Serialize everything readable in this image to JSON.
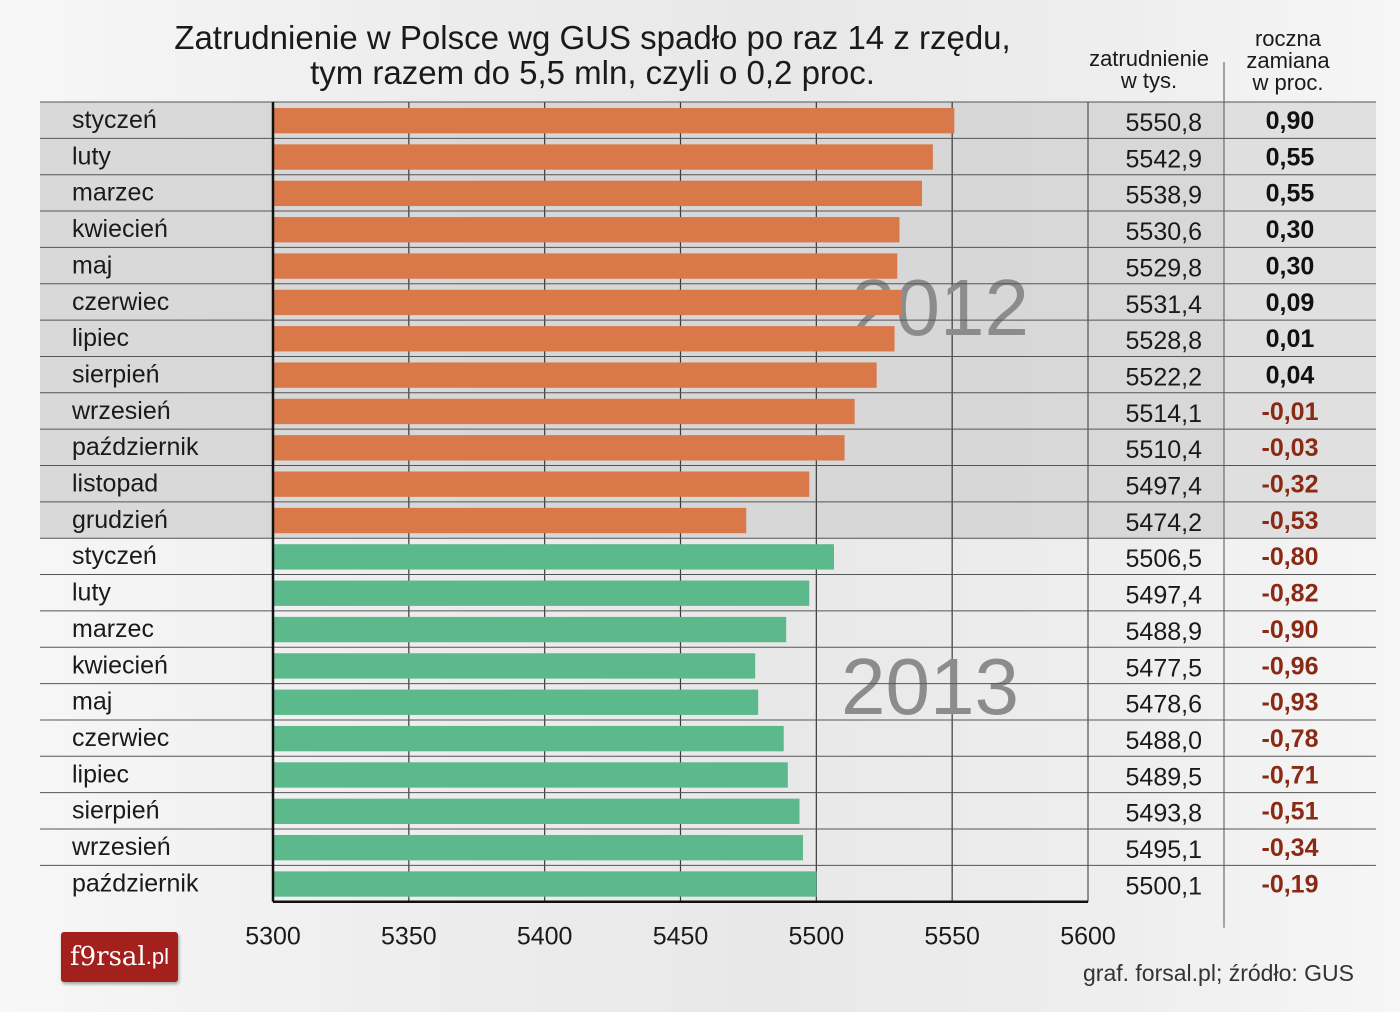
{
  "title_line1": "Zatrudnienie w Polsce wg GUS spadło po raz 14 z rzędu,",
  "title_line2": "tym razem do 5,5 mln, czyli o 0,2 proc.",
  "col_employment": [
    "zatrudnienie",
    "w tys."
  ],
  "col_change": [
    "roczna",
    "zamiana",
    "w proc."
  ],
  "source": "graf. forsal.pl; źródło: GUS",
  "logo": {
    "main": "f9rsal",
    "suffix": ".pl"
  },
  "colors": {
    "bar_2012": "#d9794a",
    "bar_2013": "#5cb98c",
    "positive_text": "#111111",
    "negative_text": "#8b2a14",
    "logo_bg": "#a3201d"
  },
  "chart_data": {
    "type": "bar",
    "orientation": "horizontal",
    "title": "Zatrudnienie w Polsce wg GUS spadło po raz 14 z rzędu, tym razem do 5,5 mln, czyli o 0,2 proc.",
    "xlim": [
      5300,
      5600
    ],
    "xticks": [
      5300,
      5350,
      5400,
      5450,
      5500,
      5550,
      5600
    ],
    "grid": "vertical",
    "annotations": [
      "2012",
      "2013"
    ],
    "rows": [
      {
        "month": "styczeń",
        "year": "2012",
        "value": 5550.8,
        "value_label": "5550,8",
        "change": 0.9,
        "change_label": "0,90"
      },
      {
        "month": "luty",
        "year": "2012",
        "value": 5542.9,
        "value_label": "5542,9",
        "change": 0.55,
        "change_label": "0,55"
      },
      {
        "month": "marzec",
        "year": "2012",
        "value": 5538.9,
        "value_label": "5538,9",
        "change": 0.55,
        "change_label": "0,55"
      },
      {
        "month": "kwiecień",
        "year": "2012",
        "value": 5530.6,
        "value_label": "5530,6",
        "change": 0.3,
        "change_label": "0,30"
      },
      {
        "month": "maj",
        "year": "2012",
        "value": 5529.8,
        "value_label": "5529,8",
        "change": 0.3,
        "change_label": "0,30"
      },
      {
        "month": "czerwiec",
        "year": "2012",
        "value": 5531.4,
        "value_label": "5531,4",
        "change": 0.09,
        "change_label": "0,09"
      },
      {
        "month": "lipiec",
        "year": "2012",
        "value": 5528.8,
        "value_label": "5528,8",
        "change": 0.01,
        "change_label": "0,01"
      },
      {
        "month": "sierpień",
        "year": "2012",
        "value": 5522.2,
        "value_label": "5522,2",
        "change": 0.04,
        "change_label": "0,04"
      },
      {
        "month": "wrzesień",
        "year": "2012",
        "value": 5514.1,
        "value_label": "5514,1",
        "change": -0.01,
        "change_label": "-0,01"
      },
      {
        "month": "październik",
        "year": "2012",
        "value": 5510.4,
        "value_label": "5510,4",
        "change": -0.03,
        "change_label": "-0,03"
      },
      {
        "month": "listopad",
        "year": "2012",
        "value": 5497.4,
        "value_label": "5497,4",
        "change": -0.32,
        "change_label": "-0,32"
      },
      {
        "month": "grudzień",
        "year": "2012",
        "value": 5474.2,
        "value_label": "5474,2",
        "change": -0.53,
        "change_label": "-0,53"
      },
      {
        "month": "styczeń",
        "year": "2013",
        "value": 5506.5,
        "value_label": "5506,5",
        "change": -0.8,
        "change_label": "-0,80"
      },
      {
        "month": "luty",
        "year": "2013",
        "value": 5497.4,
        "value_label": "5497,4",
        "change": -0.82,
        "change_label": "-0,82"
      },
      {
        "month": "marzec",
        "year": "2013",
        "value": 5488.9,
        "value_label": "5488,9",
        "change": -0.9,
        "change_label": "-0,90"
      },
      {
        "month": "kwiecień",
        "year": "2013",
        "value": 5477.5,
        "value_label": "5477,5",
        "change": -0.96,
        "change_label": "-0,96"
      },
      {
        "month": "maj",
        "year": "2013",
        "value": 5478.6,
        "value_label": "5478,6",
        "change": -0.93,
        "change_label": "-0,93"
      },
      {
        "month": "czerwiec",
        "year": "2013",
        "value": 5488.0,
        "value_label": "5488,0",
        "change": -0.78,
        "change_label": "-0,78"
      },
      {
        "month": "lipiec",
        "year": "2013",
        "value": 5489.5,
        "value_label": "5489,5",
        "change": -0.71,
        "change_label": "-0,71"
      },
      {
        "month": "sierpień",
        "year": "2013",
        "value": 5493.8,
        "value_label": "5493,8",
        "change": -0.51,
        "change_label": "-0,51"
      },
      {
        "month": "wrzesień",
        "year": "2013",
        "value": 5495.1,
        "value_label": "5495,1",
        "change": -0.34,
        "change_label": "-0,34"
      },
      {
        "month": "październik",
        "year": "2013",
        "value": 5500.1,
        "value_label": "5500,1",
        "change": -0.19,
        "change_label": "-0,19"
      }
    ]
  }
}
